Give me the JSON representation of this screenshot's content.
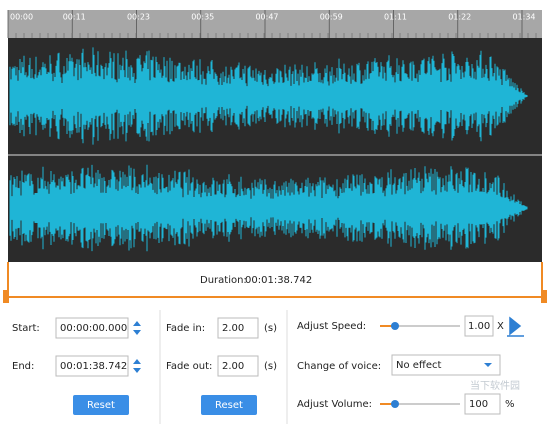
{
  "timeline": {
    "ticks": [
      "00:00",
      "00:11",
      "00:23",
      "00:35",
      "00:47",
      "00:59",
      "01:11",
      "01:22",
      "01:34"
    ]
  },
  "duration": {
    "label": "Duration:",
    "value": "00:01:38.742"
  },
  "trim": {
    "start_label": "Start:",
    "start": "00:00:00.000",
    "end_label": "End:",
    "end": "00:01:38.742",
    "reset": "Reset"
  },
  "fade": {
    "in_label": "Fade in:",
    "in": "2.00",
    "in_unit": "(s)",
    "out_label": "Fade out:",
    "out": "2.00",
    "out_unit": "(s)",
    "reset": "Reset"
  },
  "audio": {
    "speed_label": "Adjust Speed:",
    "speed": "1.00",
    "speed_unit": "X",
    "voice_label": "Change of voice:",
    "voice": "No effect",
    "volume_label": "Adjust Volume:",
    "volume": "100",
    "volume_unit": "%"
  },
  "watermark": "当下软件园"
}
